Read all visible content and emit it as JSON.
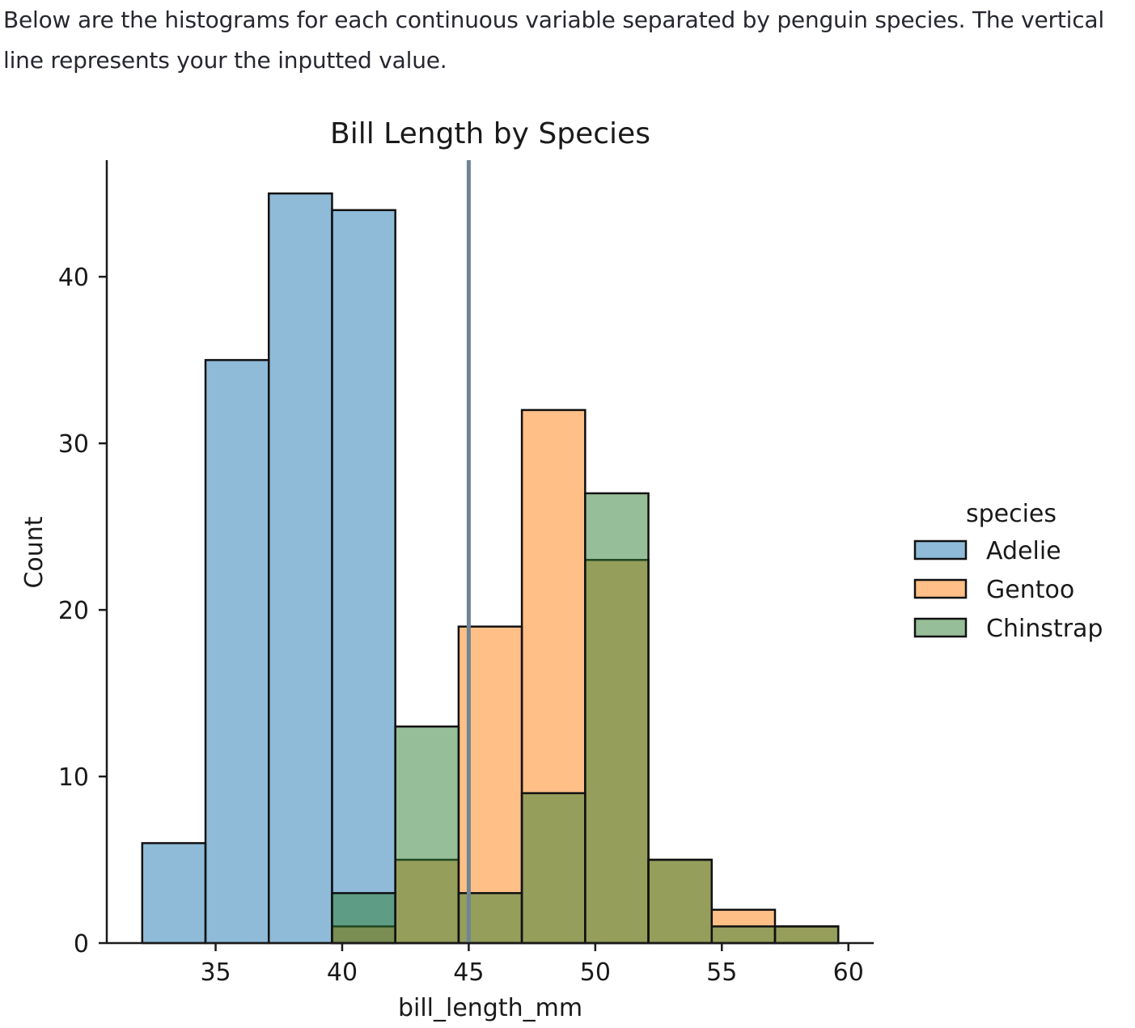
{
  "intro_text": "Below are the histograms for each continuous variable separated by penguin species. The vertical line represents your the inputted value.",
  "chart_data": {
    "type": "bar",
    "title": "Bill Length by Species",
    "xlabel": "bill_length_mm",
    "ylabel": "Count",
    "xlim": [
      30.7,
      61.0
    ],
    "ylim": [
      0,
      47
    ],
    "xticks": [
      35,
      40,
      45,
      50,
      55,
      60
    ],
    "yticks": [
      0,
      10,
      20,
      30,
      40
    ],
    "bin_edges": [
      32.1,
      34.6,
      37.1,
      39.6,
      42.1,
      44.6,
      47.1,
      49.6,
      52.1,
      54.6,
      57.1,
      59.6
    ],
    "vertical_line": 45.0,
    "legend_title": "species",
    "legend_position": "right",
    "series": [
      {
        "name": "Adelie",
        "color": "#1f77b4",
        "values": [
          6,
          35,
          45,
          44,
          0,
          0,
          0,
          0,
          0,
          0,
          0
        ]
      },
      {
        "name": "Gentoo",
        "color": "#ff7f0e",
        "values": [
          0,
          0,
          0,
          1,
          5,
          19,
          32,
          23,
          5,
          2,
          1
        ]
      },
      {
        "name": "Chinstrap",
        "color": "#2e7d32",
        "values": [
          0,
          0,
          0,
          3,
          13,
          3,
          9,
          27,
          5,
          1,
          1
        ]
      }
    ]
  }
}
